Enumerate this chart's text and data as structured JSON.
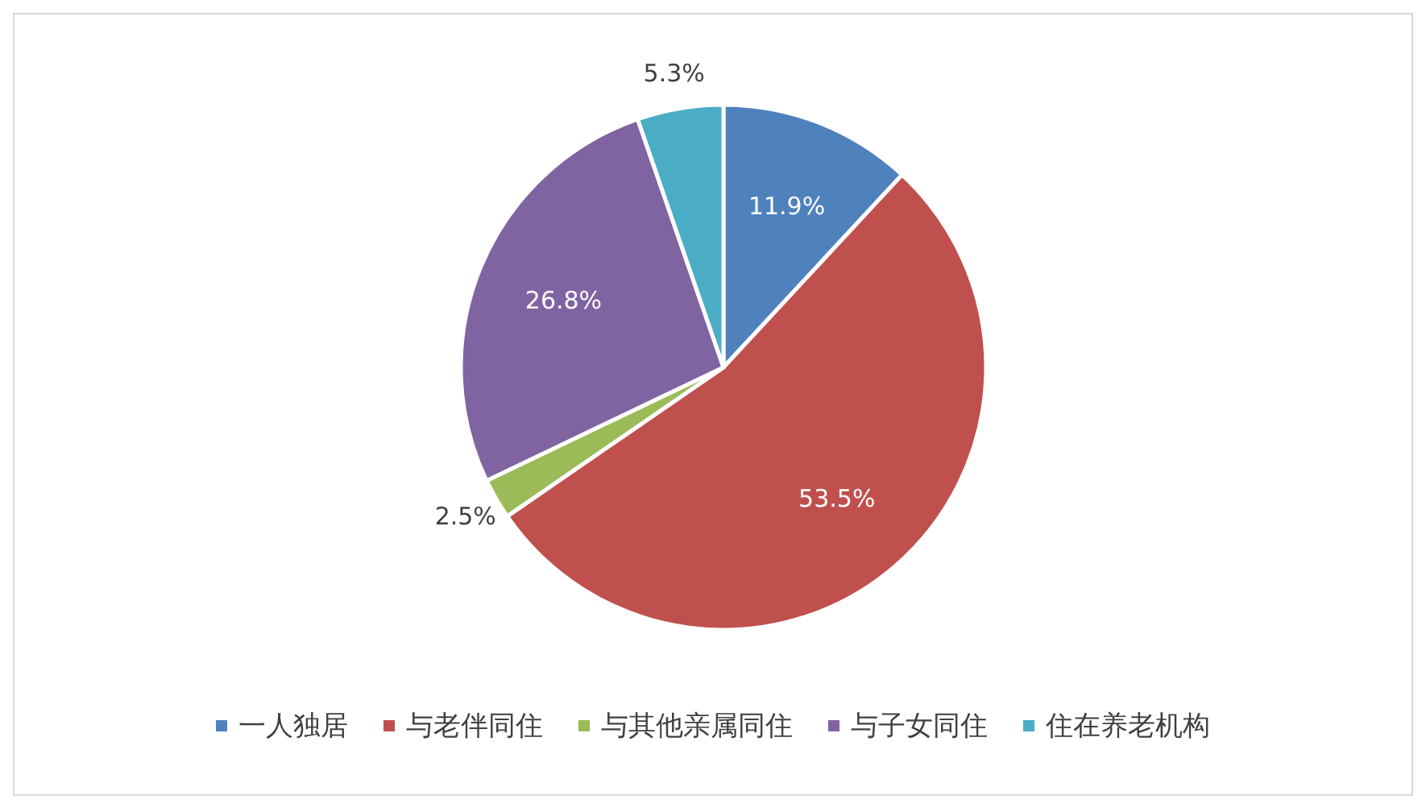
{
  "chart_data": {
    "type": "pie",
    "categories": [
      "一人独居",
      "与老伴同住",
      "与其他亲属同住",
      "与子女同住",
      "住在养老机构"
    ],
    "values": [
      11.9,
      53.5,
      2.5,
      26.8,
      5.3
    ],
    "value_labels": [
      "11.9%",
      "53.5%",
      "2.5%",
      "26.8%",
      "5.3%"
    ],
    "colors": [
      "#4f81bd",
      "#c0504d",
      "#9bbb59",
      "#8064a2",
      "#4bacc6"
    ],
    "legend": "bottom"
  }
}
